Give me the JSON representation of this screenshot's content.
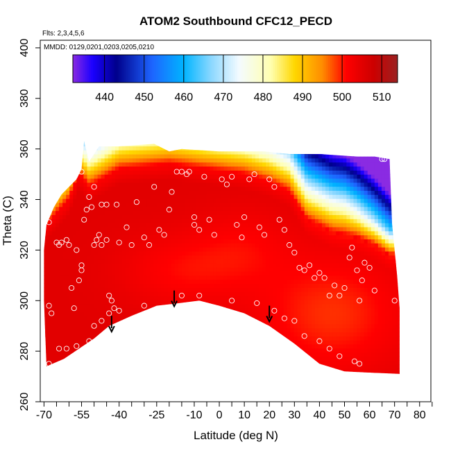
{
  "chart_data": {
    "type": "heatmap",
    "title": "ATOM2 Southbound CFC12_PECD",
    "subtitle_flights": "Flts: 2,3,4,5,6",
    "subtitle_dates": "MMDD: 0129,0201,0203,0205,0210",
    "xlabel": "Latitude (deg N)",
    "ylabel": "Theta (C)",
    "xlim": [
      -72,
      85
    ],
    "ylim": [
      260,
      402
    ],
    "x_ticks": [
      -70,
      -55,
      -40,
      -25,
      -10,
      0,
      10,
      20,
      30,
      40,
      50,
      60,
      70,
      80
    ],
    "x_minor_ticks": [
      -65,
      -60,
      -50,
      -45,
      -35,
      -30,
      -20,
      -15,
      -5,
      5,
      15,
      25,
      35,
      45,
      55,
      65,
      75,
      85
    ],
    "y_ticks": [
      260,
      280,
      300,
      320,
      340,
      360,
      380,
      400
    ],
    "colorbar": {
      "min": 432,
      "max": 514,
      "ticks": [
        440,
        450,
        460,
        470,
        480,
        490,
        500,
        510
      ],
      "color_stops": [
        {
          "v": 432,
          "c": "#8a2be2"
        },
        {
          "v": 437,
          "c": "#1a00ff"
        },
        {
          "v": 443,
          "c": "#00008b"
        },
        {
          "v": 452,
          "c": "#1e64ff"
        },
        {
          "v": 460,
          "c": "#00b4ff"
        },
        {
          "v": 467,
          "c": "#8cd8ff"
        },
        {
          "v": 474,
          "c": "#f4fbff"
        },
        {
          "v": 482,
          "c": "#ffffb0"
        },
        {
          "v": 488,
          "c": "#ffd700"
        },
        {
          "v": 495,
          "c": "#ff8c00"
        },
        {
          "v": 501,
          "c": "#ff0000"
        },
        {
          "v": 508,
          "c": "#cc0000"
        },
        {
          "v": 514,
          "c": "#9b2222"
        }
      ]
    },
    "domain_top": [
      [
        -69,
        330
      ],
      [
        -66,
        337
      ],
      [
        -63,
        342
      ],
      [
        -60,
        345
      ],
      [
        -57,
        348
      ],
      [
        -55,
        352
      ],
      [
        -54,
        363
      ],
      [
        -52,
        355
      ],
      [
        -48,
        361
      ],
      [
        -40,
        361
      ],
      [
        -26,
        362
      ],
      [
        -20,
        359
      ],
      [
        -15,
        360
      ],
      [
        0,
        359
      ],
      [
        10,
        359
      ],
      [
        15,
        359
      ],
      [
        18,
        359
      ],
      [
        28,
        358
      ],
      [
        40,
        358
      ],
      [
        55,
        357
      ],
      [
        62,
        357
      ],
      [
        68,
        356
      ]
    ],
    "domain_right": [
      [
        68,
        356
      ],
      [
        69,
        330
      ],
      [
        71,
        310
      ],
      [
        72,
        297
      ],
      [
        72,
        271
      ]
    ],
    "domain_bottom": [
      [
        72,
        271
      ],
      [
        50,
        272
      ],
      [
        40,
        275
      ],
      [
        30,
        283
      ],
      [
        20,
        290
      ],
      [
        10,
        295
      ],
      [
        0,
        298
      ],
      [
        -8,
        300
      ],
      [
        -16,
        299
      ],
      [
        -25,
        298
      ],
      [
        -35,
        294
      ],
      [
        -44,
        290
      ],
      [
        -50,
        285
      ],
      [
        -56,
        281
      ],
      [
        -62,
        277
      ],
      [
        -69,
        274
      ]
    ],
    "domain_left": [
      [
        -69,
        274
      ],
      [
        -70,
        300
      ],
      [
        -70,
        320
      ],
      [
        -69,
        330
      ]
    ],
    "surface_bias": [
      {
        "x": 45,
        "y": 295,
        "v": -6,
        "rx": 30,
        "ry": 24
      },
      {
        "x": -15,
        "y": 312,
        "v": -4,
        "rx": 25,
        "ry": 15
      },
      {
        "x": 10,
        "y": 322,
        "v": -3,
        "rx": 20,
        "ry": 16
      }
    ],
    "band_top_ref": [
      [
        -69,
        330
      ],
      [
        -60,
        340
      ],
      [
        -56,
        350
      ],
      [
        -52,
        345
      ],
      [
        -40,
        352
      ],
      [
        -20,
        354
      ],
      [
        -5,
        352
      ],
      [
        10,
        350
      ],
      [
        20,
        347
      ],
      [
        28,
        343
      ],
      [
        35,
        332
      ],
      [
        45,
        327
      ],
      [
        55,
        325
      ],
      [
        62,
        322
      ],
      [
        68,
        318
      ]
    ],
    "arrows": [
      {
        "x": -43,
        "y_top": 294,
        "y_bottom": 288
      },
      {
        "x": -18,
        "y_top": 304,
        "y_bottom": 298
      },
      {
        "x": 20,
        "y_top": 298,
        "y_bottom": 292
      }
    ],
    "samples": [
      [
        -68,
        331
      ],
      [
        -68,
        298
      ],
      [
        -67,
        295
      ],
      [
        -68,
        275
      ],
      [
        -65,
        323
      ],
      [
        -64,
        322
      ],
      [
        -63,
        323
      ],
      [
        -61,
        324
      ],
      [
        -60,
        322
      ],
      [
        -59,
        305
      ],
      [
        -57,
        320
      ],
      [
        -56,
        308
      ],
      [
        -55,
        314
      ],
      [
        -54,
        332
      ],
      [
        -53,
        336
      ],
      [
        -52,
        341
      ],
      [
        -51,
        337
      ],
      [
        -50,
        322
      ],
      [
        -49,
        324
      ],
      [
        -48,
        326
      ],
      [
        -47,
        322
      ],
      [
        -45,
        324
      ],
      [
        -44,
        302
      ],
      [
        -43,
        300
      ],
      [
        -42,
        297
      ],
      [
        -40,
        296
      ],
      [
        -38,
        290
      ],
      [
        -36,
        292
      ],
      [
        -34,
        288
      ],
      [
        -55,
        312
      ],
      [
        -58,
        297
      ],
      [
        -55,
        351
      ],
      [
        -50,
        345
      ],
      [
        -47,
        338
      ],
      [
        -45,
        338
      ],
      [
        -41,
        338
      ],
      [
        -40,
        323
      ],
      [
        -37,
        329
      ],
      [
        -35,
        322
      ],
      [
        -33,
        339
      ],
      [
        -30,
        325
      ],
      [
        -28,
        322
      ],
      [
        -26,
        345
      ],
      [
        -24,
        328
      ],
      [
        -22,
        326
      ],
      [
        -20,
        336
      ],
      [
        -19,
        343
      ],
      [
        -17,
        351
      ],
      [
        -15,
        351
      ],
      [
        -13,
        350
      ],
      [
        -12,
        351
      ],
      [
        -10,
        333
      ],
      [
        -10,
        330
      ],
      [
        -8,
        328
      ],
      [
        -6,
        349
      ],
      [
        -4,
        332
      ],
      [
        -2,
        326
      ],
      [
        1,
        348
      ],
      [
        3,
        346
      ],
      [
        5,
        349
      ],
      [
        7,
        330
      ],
      [
        9,
        325
      ],
      [
        10,
        333
      ],
      [
        12,
        348
      ],
      [
        14,
        350
      ],
      [
        16,
        329
      ],
      [
        18,
        326
      ],
      [
        20,
        348
      ],
      [
        22,
        345
      ],
      [
        24,
        332
      ],
      [
        26,
        328
      ],
      [
        28,
        322
      ],
      [
        30,
        319
      ],
      [
        32,
        313
      ],
      [
        34,
        312
      ],
      [
        36,
        314
      ],
      [
        38,
        309
      ],
      [
        40,
        311
      ],
      [
        42,
        309
      ],
      [
        44,
        302
      ],
      [
        46,
        306
      ],
      [
        48,
        302
      ],
      [
        50,
        305
      ],
      [
        52,
        317
      ],
      [
        53,
        321
      ],
      [
        55,
        312
      ],
      [
        56,
        300
      ],
      [
        57,
        308
      ],
      [
        58,
        315
      ],
      [
        60,
        313
      ],
      [
        62,
        304
      ],
      [
        65,
        356
      ],
      [
        66,
        356
      ],
      [
        70,
        300
      ],
      [
        -30,
        298
      ],
      [
        -15,
        302
      ],
      [
        -8,
        302
      ],
      [
        5,
        300
      ],
      [
        15,
        299
      ],
      [
        22,
        296
      ],
      [
        26,
        293
      ],
      [
        30,
        292
      ],
      [
        34,
        286
      ],
      [
        40,
        284
      ],
      [
        44,
        281
      ],
      [
        48,
        278
      ],
      [
        54,
        276
      ],
      [
        56,
        275
      ],
      [
        -64,
        281
      ],
      [
        -61,
        281
      ],
      [
        -57,
        282
      ],
      [
        -52,
        284
      ],
      [
        -50,
        290
      ],
      [
        -47,
        292
      ],
      [
        -44,
        295
      ]
    ]
  }
}
